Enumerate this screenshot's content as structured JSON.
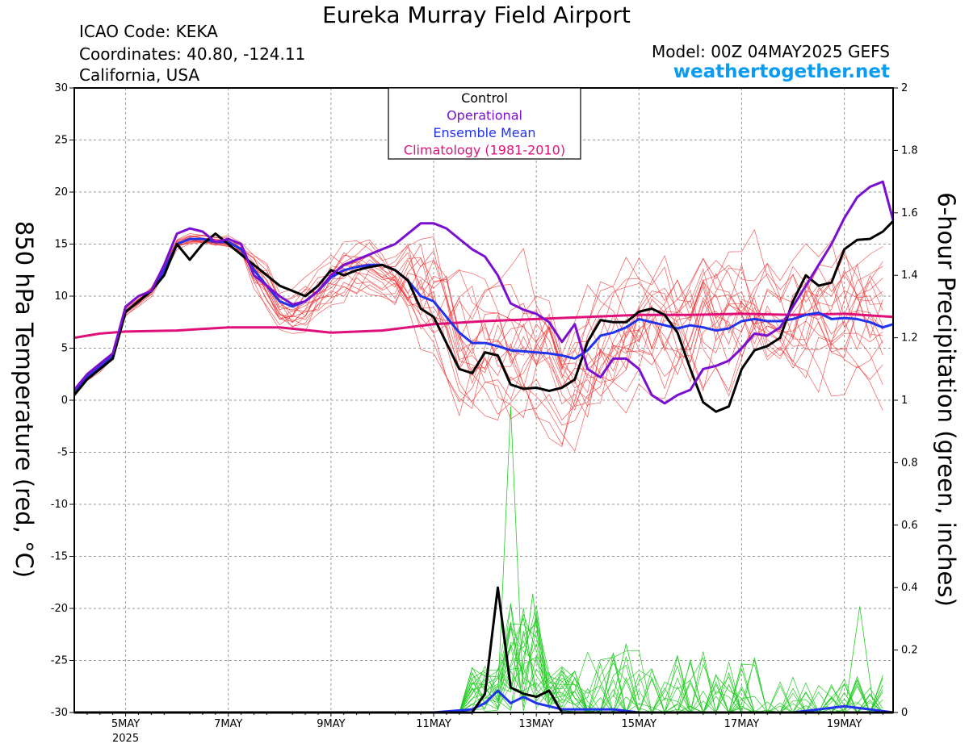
{
  "header": {
    "title": "Eureka Murray Field Airport",
    "icao": "ICAO Code: KEKA",
    "coordinates": "Coordinates: 40.80, -124.11",
    "region": "California, USA",
    "model": "Model: 00Z 04MAY2025 GEFS",
    "website": "weathertogether.net"
  },
  "chart_data": {
    "type": "line",
    "ylabel_left": "850 hPa Temperature (red, °C)",
    "ylabel_right": "6-hour Precipitation (green, inches)",
    "ylim_left": [
      -30,
      30
    ],
    "ylim_right": [
      0,
      2
    ],
    "xlim_days": [
      4.0,
      19.95
    ],
    "xticks": [
      {
        "label": "5MAY",
        "sub": "2025",
        "day": 5
      },
      {
        "label": "7MAY",
        "sub": "",
        "day": 7
      },
      {
        "label": "9MAY",
        "sub": "",
        "day": 9
      },
      {
        "label": "11MAY",
        "sub": "",
        "day": 11
      },
      {
        "label": "13MAY",
        "sub": "",
        "day": 13
      },
      {
        "label": "15MAY",
        "sub": "",
        "day": 15
      },
      {
        "label": "17MAY",
        "sub": "",
        "day": 17
      },
      {
        "label": "19MAY",
        "sub": "",
        "day": 19
      }
    ],
    "yticks_left": [
      30,
      25,
      20,
      15,
      10,
      5,
      0,
      -5,
      -10,
      -15,
      -20,
      -25,
      -30
    ],
    "yticks_right": [
      2,
      1.8,
      1.6,
      1.4,
      1.2,
      1,
      0.8,
      0.6,
      0.4,
      0.2,
      0
    ],
    "grid": true,
    "legend_position": "top-center",
    "legend": [
      {
        "label": "Control",
        "color": "#000000"
      },
      {
        "label": "Operational",
        "color": "#7b0fd0"
      },
      {
        "label": "Ensemble Mean",
        "color": "#2233ee"
      },
      {
        "label": "Climatology (1981-2010)",
        "color": "#e0107a"
      }
    ],
    "colors": {
      "control": "#000000",
      "operational": "#7b0fd0",
      "mean": "#2233ee",
      "climatology": "#e0107a",
      "members": "#ee3333",
      "precip_members": "#22cc22"
    },
    "temperature_series": {
      "control": [
        [
          4,
          0.5
        ],
        [
          4.25,
          2
        ],
        [
          4.5,
          3
        ],
        [
          4.75,
          4
        ],
        [
          5,
          8.5
        ],
        [
          5.25,
          9.5
        ],
        [
          5.5,
          10.5
        ],
        [
          5.75,
          12
        ],
        [
          6,
          15
        ],
        [
          6.25,
          13.5
        ],
        [
          6.5,
          15
        ],
        [
          6.75,
          16
        ],
        [
          7,
          15
        ],
        [
          7.25,
          14
        ],
        [
          7.5,
          13
        ],
        [
          7.75,
          12
        ],
        [
          8,
          11
        ],
        [
          8.25,
          10.5
        ],
        [
          8.5,
          10
        ],
        [
          8.75,
          11
        ],
        [
          9,
          12.5
        ],
        [
          9.25,
          12
        ],
        [
          9.5,
          12.5
        ],
        [
          9.75,
          12.8
        ],
        [
          10,
          13
        ],
        [
          10.25,
          12.5
        ],
        [
          10.5,
          11.5
        ],
        [
          10.75,
          8.8
        ],
        [
          11,
          8
        ],
        [
          11.25,
          5.5
        ],
        [
          11.5,
          3
        ],
        [
          11.75,
          2.6
        ],
        [
          12,
          4.6
        ],
        [
          12.25,
          4.3
        ],
        [
          12.5,
          1.5
        ],
        [
          12.75,
          1.1
        ],
        [
          13,
          1.2
        ],
        [
          13.25,
          0.9
        ],
        [
          13.5,
          1.2
        ],
        [
          13.75,
          2
        ],
        [
          14,
          5.6
        ],
        [
          14.25,
          7.7
        ],
        [
          14.5,
          7.5
        ],
        [
          14.75,
          7.5
        ],
        [
          15,
          8.5
        ],
        [
          15.25,
          8.8
        ],
        [
          15.5,
          8.2
        ],
        [
          15.75,
          6.5
        ],
        [
          16,
          3
        ],
        [
          16.25,
          -0.2
        ],
        [
          16.5,
          -1.1
        ],
        [
          16.75,
          -0.6
        ],
        [
          17,
          3
        ],
        [
          17.25,
          4.8
        ],
        [
          17.5,
          5.2
        ],
        [
          17.75,
          6
        ],
        [
          18,
          9.5
        ],
        [
          18.25,
          12
        ],
        [
          18.5,
          11
        ],
        [
          18.75,
          11.3
        ],
        [
          19,
          14.5
        ],
        [
          19.25,
          15.4
        ],
        [
          19.5,
          15.5
        ],
        [
          19.75,
          16.2
        ],
        [
          19.95,
          17.2
        ]
      ],
      "operational": [
        [
          4,
          1
        ],
        [
          4.25,
          2.5
        ],
        [
          4.5,
          3.5
        ],
        [
          4.75,
          4.5
        ],
        [
          5,
          9
        ],
        [
          5.25,
          10
        ],
        [
          5.5,
          10.5
        ],
        [
          5.75,
          13
        ],
        [
          6,
          16
        ],
        [
          6.25,
          16.5
        ],
        [
          6.5,
          16.2
        ],
        [
          6.75,
          15.2
        ],
        [
          7,
          15.5
        ],
        [
          7.25,
          15
        ],
        [
          7.5,
          12
        ],
        [
          7.75,
          11
        ],
        [
          8,
          10
        ],
        [
          8.25,
          9.2
        ],
        [
          8.5,
          9.5
        ],
        [
          8.75,
          10.5
        ],
        [
          9,
          12
        ],
        [
          9.25,
          13
        ],
        [
          9.5,
          13.5
        ],
        [
          9.75,
          14
        ],
        [
          10,
          14.5
        ],
        [
          10.25,
          15
        ],
        [
          10.5,
          16
        ],
        [
          10.75,
          17
        ],
        [
          11,
          17
        ],
        [
          11.25,
          16.5
        ],
        [
          11.5,
          15.5
        ],
        [
          11.75,
          14.5
        ],
        [
          12,
          13.8
        ],
        [
          12.25,
          12
        ],
        [
          12.5,
          9.3
        ],
        [
          12.75,
          8.7
        ],
        [
          13,
          8.3
        ],
        [
          13.25,
          7.5
        ],
        [
          13.5,
          5.6
        ],
        [
          13.75,
          7.3
        ],
        [
          14,
          3
        ],
        [
          14.25,
          2.2
        ],
        [
          14.5,
          4
        ],
        [
          14.75,
          4
        ],
        [
          15,
          3
        ],
        [
          15.25,
          0.5
        ],
        [
          15.5,
          -0.3
        ],
        [
          15.75,
          0.5
        ],
        [
          16,
          1
        ],
        [
          16.25,
          3
        ],
        [
          16.5,
          3.3
        ],
        [
          16.75,
          3.8
        ],
        [
          17,
          5
        ],
        [
          17.25,
          6.4
        ],
        [
          17.5,
          6.2
        ],
        [
          17.75,
          7
        ],
        [
          18,
          9
        ],
        [
          18.25,
          11
        ],
        [
          18.5,
          13
        ],
        [
          18.75,
          15
        ],
        [
          19,
          17.5
        ],
        [
          19.25,
          19.5
        ],
        [
          19.5,
          20.5
        ],
        [
          19.75,
          21
        ],
        [
          19.95,
          17.3
        ]
      ],
      "mean": [
        [
          4,
          0.8
        ],
        [
          4.25,
          2.2
        ],
        [
          4.5,
          3.2
        ],
        [
          4.75,
          4.2
        ],
        [
          5,
          8.5
        ],
        [
          5.25,
          9.5
        ],
        [
          5.5,
          10.5
        ],
        [
          5.75,
          12.5
        ],
        [
          6,
          15
        ],
        [
          6.25,
          15.5
        ],
        [
          6.5,
          15.5
        ],
        [
          6.75,
          15.2
        ],
        [
          7,
          15.2
        ],
        [
          7.25,
          14.5
        ],
        [
          7.5,
          12.5
        ],
        [
          7.75,
          11
        ],
        [
          8,
          9.5
        ],
        [
          8.25,
          9
        ],
        [
          8.5,
          9.5
        ],
        [
          8.75,
          10.5
        ],
        [
          9,
          11.8
        ],
        [
          9.25,
          12.5
        ],
        [
          9.5,
          12.8
        ],
        [
          9.75,
          13
        ],
        [
          10,
          13
        ],
        [
          10.25,
          12.5
        ],
        [
          10.5,
          11.5
        ],
        [
          10.75,
          10
        ],
        [
          11,
          9.5
        ],
        [
          11.25,
          8
        ],
        [
          11.5,
          6.5
        ],
        [
          11.75,
          5.5
        ],
        [
          12,
          5.5
        ],
        [
          12.25,
          5.2
        ],
        [
          12.5,
          4.8
        ],
        [
          12.75,
          4.7
        ],
        [
          13,
          4.6
        ],
        [
          13.25,
          4.5
        ],
        [
          13.5,
          4.3
        ],
        [
          13.75,
          4
        ],
        [
          14,
          4.8
        ],
        [
          14.25,
          6.2
        ],
        [
          14.5,
          6.5
        ],
        [
          14.75,
          7
        ],
        [
          15,
          7.8
        ],
        [
          15.25,
          7.5
        ],
        [
          15.5,
          7.2
        ],
        [
          15.75,
          6.9
        ],
        [
          16,
          7.2
        ],
        [
          16.25,
          7
        ],
        [
          16.5,
          6.7
        ],
        [
          16.75,
          6.9
        ],
        [
          17,
          7.6
        ],
        [
          17.25,
          7.8
        ],
        [
          17.5,
          7.6
        ],
        [
          17.75,
          7.6
        ],
        [
          18,
          7.8
        ],
        [
          18.25,
          8.2
        ],
        [
          18.5,
          8.4
        ],
        [
          18.75,
          7.8
        ],
        [
          19,
          7.9
        ],
        [
          19.25,
          7.8
        ],
        [
          19.5,
          7.5
        ],
        [
          19.75,
          7
        ],
        [
          19.95,
          7.3
        ]
      ],
      "climatology": [
        [
          4,
          6
        ],
        [
          4.5,
          6.4
        ],
        [
          5,
          6.6
        ],
        [
          6,
          6.7
        ],
        [
          7,
          7
        ],
        [
          8,
          7
        ],
        [
          9,
          6.5
        ],
        [
          10,
          6.7
        ],
        [
          11,
          7.3
        ],
        [
          12,
          7.6
        ],
        [
          13,
          7.8
        ],
        [
          14,
          8
        ],
        [
          15,
          8.2
        ],
        [
          16,
          8.2
        ],
        [
          17,
          8.3
        ],
        [
          18,
          8.2
        ],
        [
          19,
          8.3
        ],
        [
          19.95,
          8
        ]
      ]
    },
    "precipitation_series": {
      "control": [
        [
          4,
          0
        ],
        [
          11,
          0
        ],
        [
          11.75,
          0
        ],
        [
          12,
          0.06
        ],
        [
          12.25,
          0.4
        ],
        [
          12.5,
          0.08
        ],
        [
          12.75,
          0.06
        ],
        [
          13,
          0.05
        ],
        [
          13.25,
          0.07
        ],
        [
          13.5,
          0
        ],
        [
          19.95,
          0
        ]
      ],
      "mean": [
        [
          4,
          0
        ],
        [
          11,
          0
        ],
        [
          11.75,
          0.01
        ],
        [
          12,
          0.03
        ],
        [
          12.25,
          0.07
        ],
        [
          12.5,
          0.03
        ],
        [
          12.75,
          0.05
        ],
        [
          13,
          0.03
        ],
        [
          13.25,
          0.02
        ],
        [
          13.5,
          0.01
        ],
        [
          14,
          0.01
        ],
        [
          14.5,
          0.01
        ],
        [
          15,
          0
        ],
        [
          16,
          0
        ],
        [
          17,
          0
        ],
        [
          18,
          0
        ],
        [
          19,
          0.02
        ],
        [
          19.5,
          0.01
        ],
        [
          19.95,
          0
        ]
      ]
    }
  }
}
